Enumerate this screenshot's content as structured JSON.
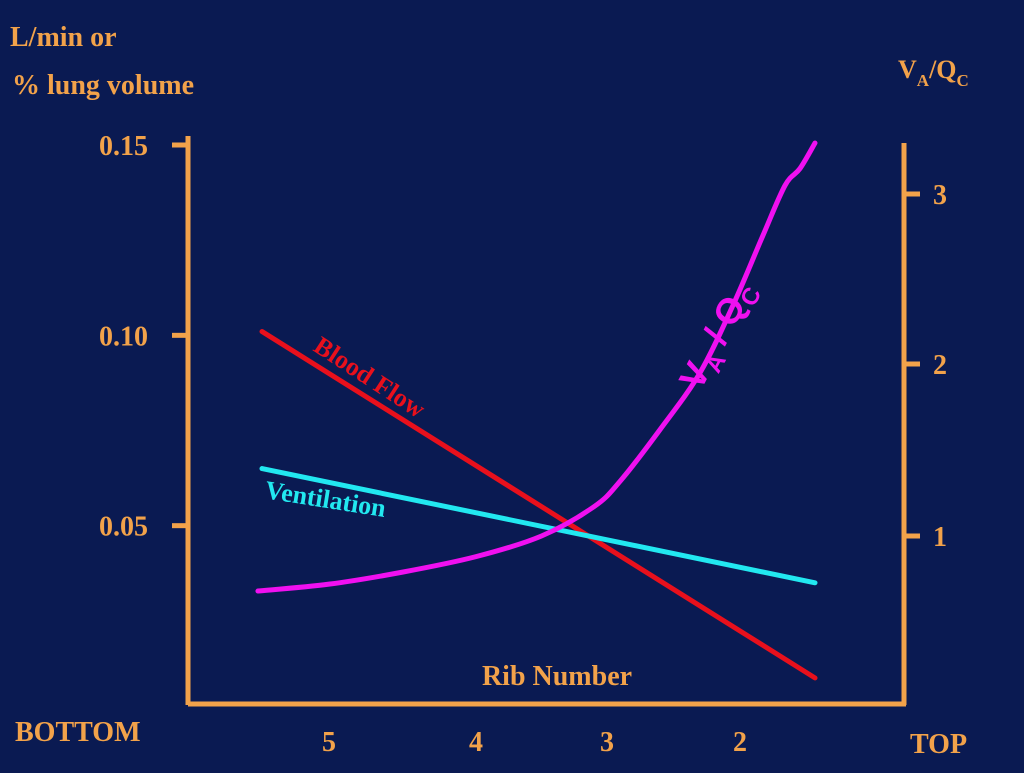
{
  "colors": {
    "background": "#0a1a52",
    "axis": "#f2a24a",
    "text": "#f2a24a",
    "blood_flow": "#e8101c",
    "ventilation": "#22e8f0",
    "vaqc": "#f010f0"
  },
  "chart_data": {
    "type": "line",
    "left_axis": {
      "title_line1": "L/min or",
      "title_line2": "% lung volume",
      "ticks": [
        0.05,
        0.1,
        0.15
      ],
      "tick_labels": [
        "0.05",
        "0.10",
        "0.15"
      ],
      "ylim": [
        0.0,
        0.15
      ]
    },
    "right_axis": {
      "title_main": "V",
      "title_sub1": "A",
      "title_mid": "/Q",
      "title_sub2": "C",
      "ticks": [
        1,
        2,
        3
      ],
      "tick_labels": [
        "1",
        "2",
        "3"
      ],
      "ylim": [
        0.0,
        3.0
      ]
    },
    "x_axis": {
      "title": "Rib Number",
      "left_end_label": "BOTTOM",
      "right_end_label": "TOP",
      "tick_labels": [
        {
          "label": "5",
          "x": 5
        },
        {
          "label": "4",
          "x": 4
        },
        {
          "label": "3",
          "x": 3
        },
        {
          "label": "2",
          "x": 2
        }
      ],
      "xlim": [
        6.1,
        0.6
      ]
    },
    "series": [
      {
        "name": "Blood Flow",
        "axis": "left",
        "color": "#e8101c",
        "x": [
          5.5,
          1.5
        ],
        "y": [
          0.101,
          0.01
        ]
      },
      {
        "name": "Ventilation",
        "axis": "left",
        "color": "#22e8f0",
        "x": [
          5.5,
          1.5
        ],
        "y": [
          0.065,
          0.035
        ]
      },
      {
        "name_main": "V",
        "name_sub1": "A",
        "name_mid": " / Q",
        "name_sub2": "C",
        "axis": "right",
        "color": "#f010f0",
        "x": [
          5.52,
          5.0,
          4.5,
          4.0,
          3.5,
          3.1,
          2.9,
          2.6,
          2.3,
          2.05,
          1.85,
          1.7,
          1.6,
          1.5
        ],
        "y": [
          0.68,
          0.72,
          0.79,
          0.88,
          1.0,
          1.17,
          1.32,
          1.62,
          1.95,
          2.35,
          2.75,
          3.05,
          3.15,
          3.3
        ]
      }
    ]
  }
}
